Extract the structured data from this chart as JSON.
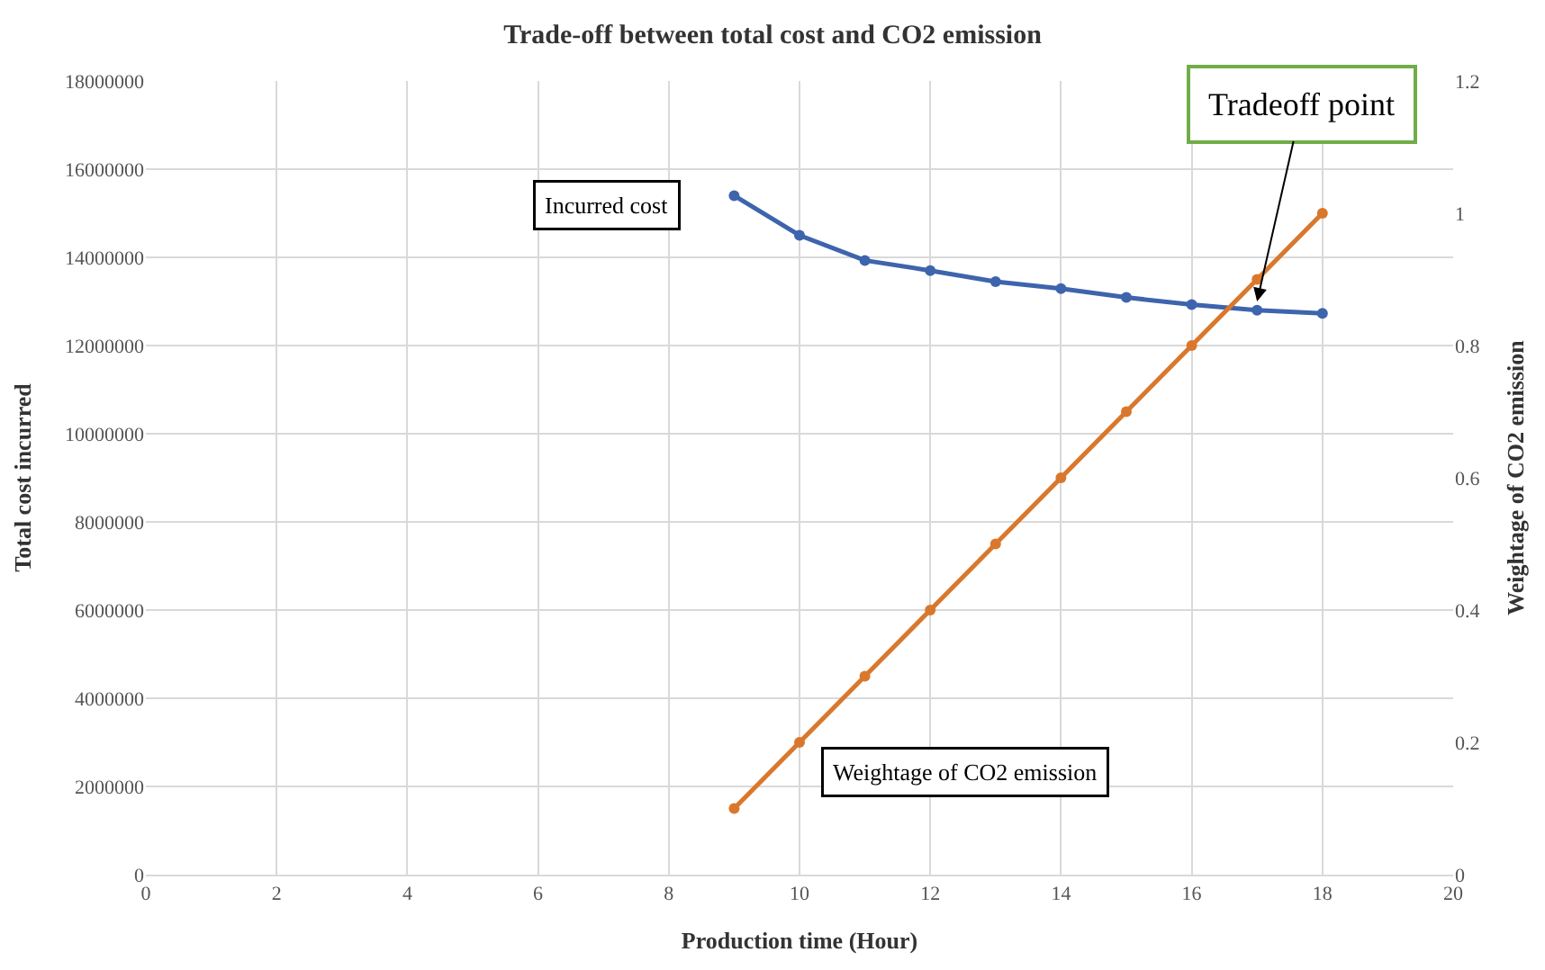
{
  "chart_data": {
    "type": "line",
    "title": "Trade-off between total cost and CO2 emission",
    "xlabel": "Production time (Hour)",
    "ylabel": "Total cost incurred",
    "y2label": "Weightage of CO2 emission",
    "x": [
      9,
      10,
      11,
      12,
      13,
      14,
      15,
      16,
      17,
      18
    ],
    "series": [
      {
        "name": "Incurred cost",
        "color": "#3e64ad",
        "values": [
          15400000,
          14500000,
          13930000,
          13700000,
          13450000,
          13290000,
          13090000,
          12930000,
          12800000,
          12730000
        ]
      },
      {
        "name": "Weightage of CO2 emission",
        "color": "#d9782d",
        "axis": "y2",
        "values": [
          0.1,
          0.2,
          0.3,
          0.4,
          0.5,
          0.6,
          0.7,
          0.8,
          0.9,
          1.0
        ]
      }
    ],
    "annotations": [
      {
        "text": "Tradeoff point",
        "x": 17,
        "y": 13000000
      }
    ],
    "xlim": [
      0,
      20
    ],
    "xticks": [
      0,
      2,
      4,
      6,
      8,
      10,
      12,
      14,
      16,
      18,
      20
    ],
    "ylim": [
      0,
      18000000
    ],
    "yticks": [
      0,
      2000000,
      4000000,
      6000000,
      8000000,
      10000000,
      12000000,
      14000000,
      16000000,
      18000000
    ],
    "y2lim": [
      0,
      1.2
    ],
    "y2ticks": [
      0,
      0.2,
      0.4,
      0.6,
      0.8,
      1,
      1.2
    ],
    "grid": true,
    "marker": "circle",
    "line_style": "solid",
    "legend": false
  }
}
